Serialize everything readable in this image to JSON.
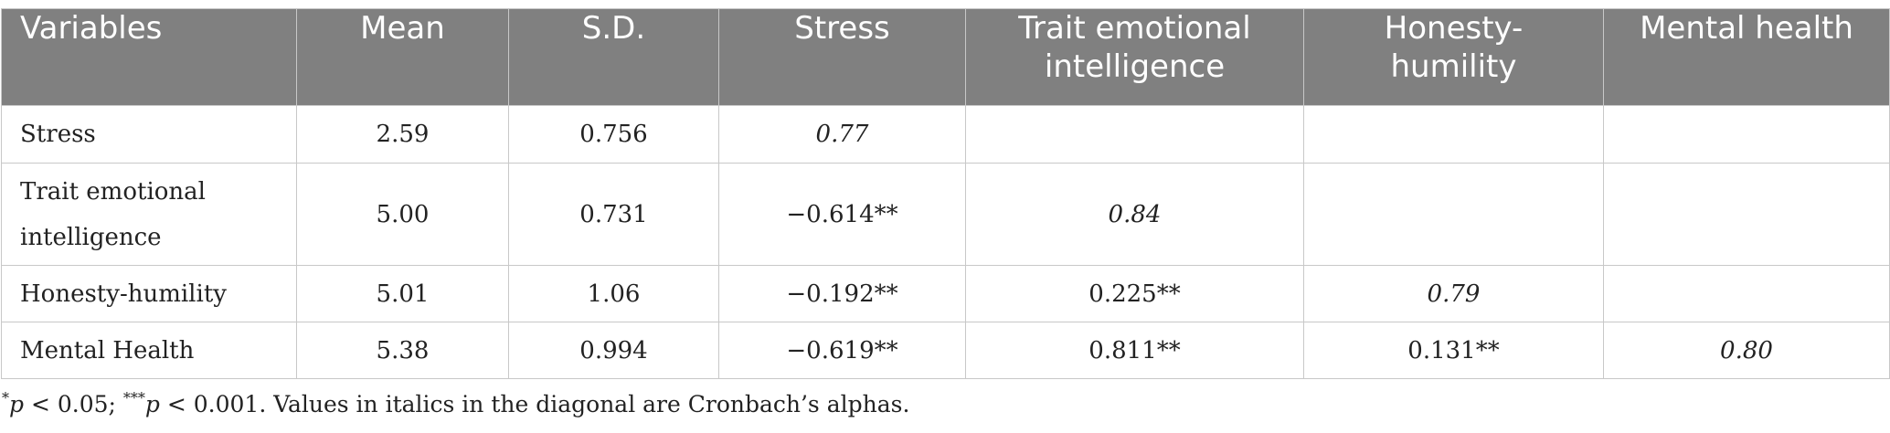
{
  "table": {
    "headers": [
      "Variables",
      "Mean",
      "S.D.",
      "Stress",
      "Trait emotional intelligence",
      "Honesty-humility",
      "Mental health"
    ],
    "header_lines": {
      "trait_line1": "Trait emotional",
      "trait_line2": "intelligence",
      "honesty_line1": "Honesty-",
      "honesty_line2": "humility"
    },
    "rows": [
      {
        "variable": "Stress",
        "mean": "2.59",
        "sd": "0.756",
        "stress": "0.77",
        "trait_ei": "",
        "honesty": "",
        "mental": ""
      },
      {
        "variable": "Trait emotional intelligence",
        "variable_line1": "Trait emotional",
        "variable_line2": "intelligence",
        "mean": "5.00",
        "sd": "0.731",
        "stress": "−0.614**",
        "trait_ei": "0.84",
        "honesty": "",
        "mental": ""
      },
      {
        "variable": "Honesty-humility",
        "mean": "5.01",
        "sd": "1.06",
        "stress": "−0.192**",
        "trait_ei": "0.225**",
        "honesty": "0.79",
        "mental": ""
      },
      {
        "variable": "Mental Health",
        "mean": "5.38",
        "sd": "0.994",
        "stress": "−0.619**",
        "trait_ei": "0.811**",
        "honesty": "0.131**",
        "mental": "0.80"
      }
    ]
  },
  "footnote": {
    "star1": "*",
    "p1": "p",
    "text1": " < 0.05; ",
    "star3": "***",
    "p2": "p",
    "text2": " < 0.001. Values in italics in the diagonal are Cronbach’s alphas."
  },
  "colors": {
    "header_bg": "#808080",
    "header_text": "#ffffff",
    "grid": "#c8c8c8",
    "body_text": "#222222"
  }
}
